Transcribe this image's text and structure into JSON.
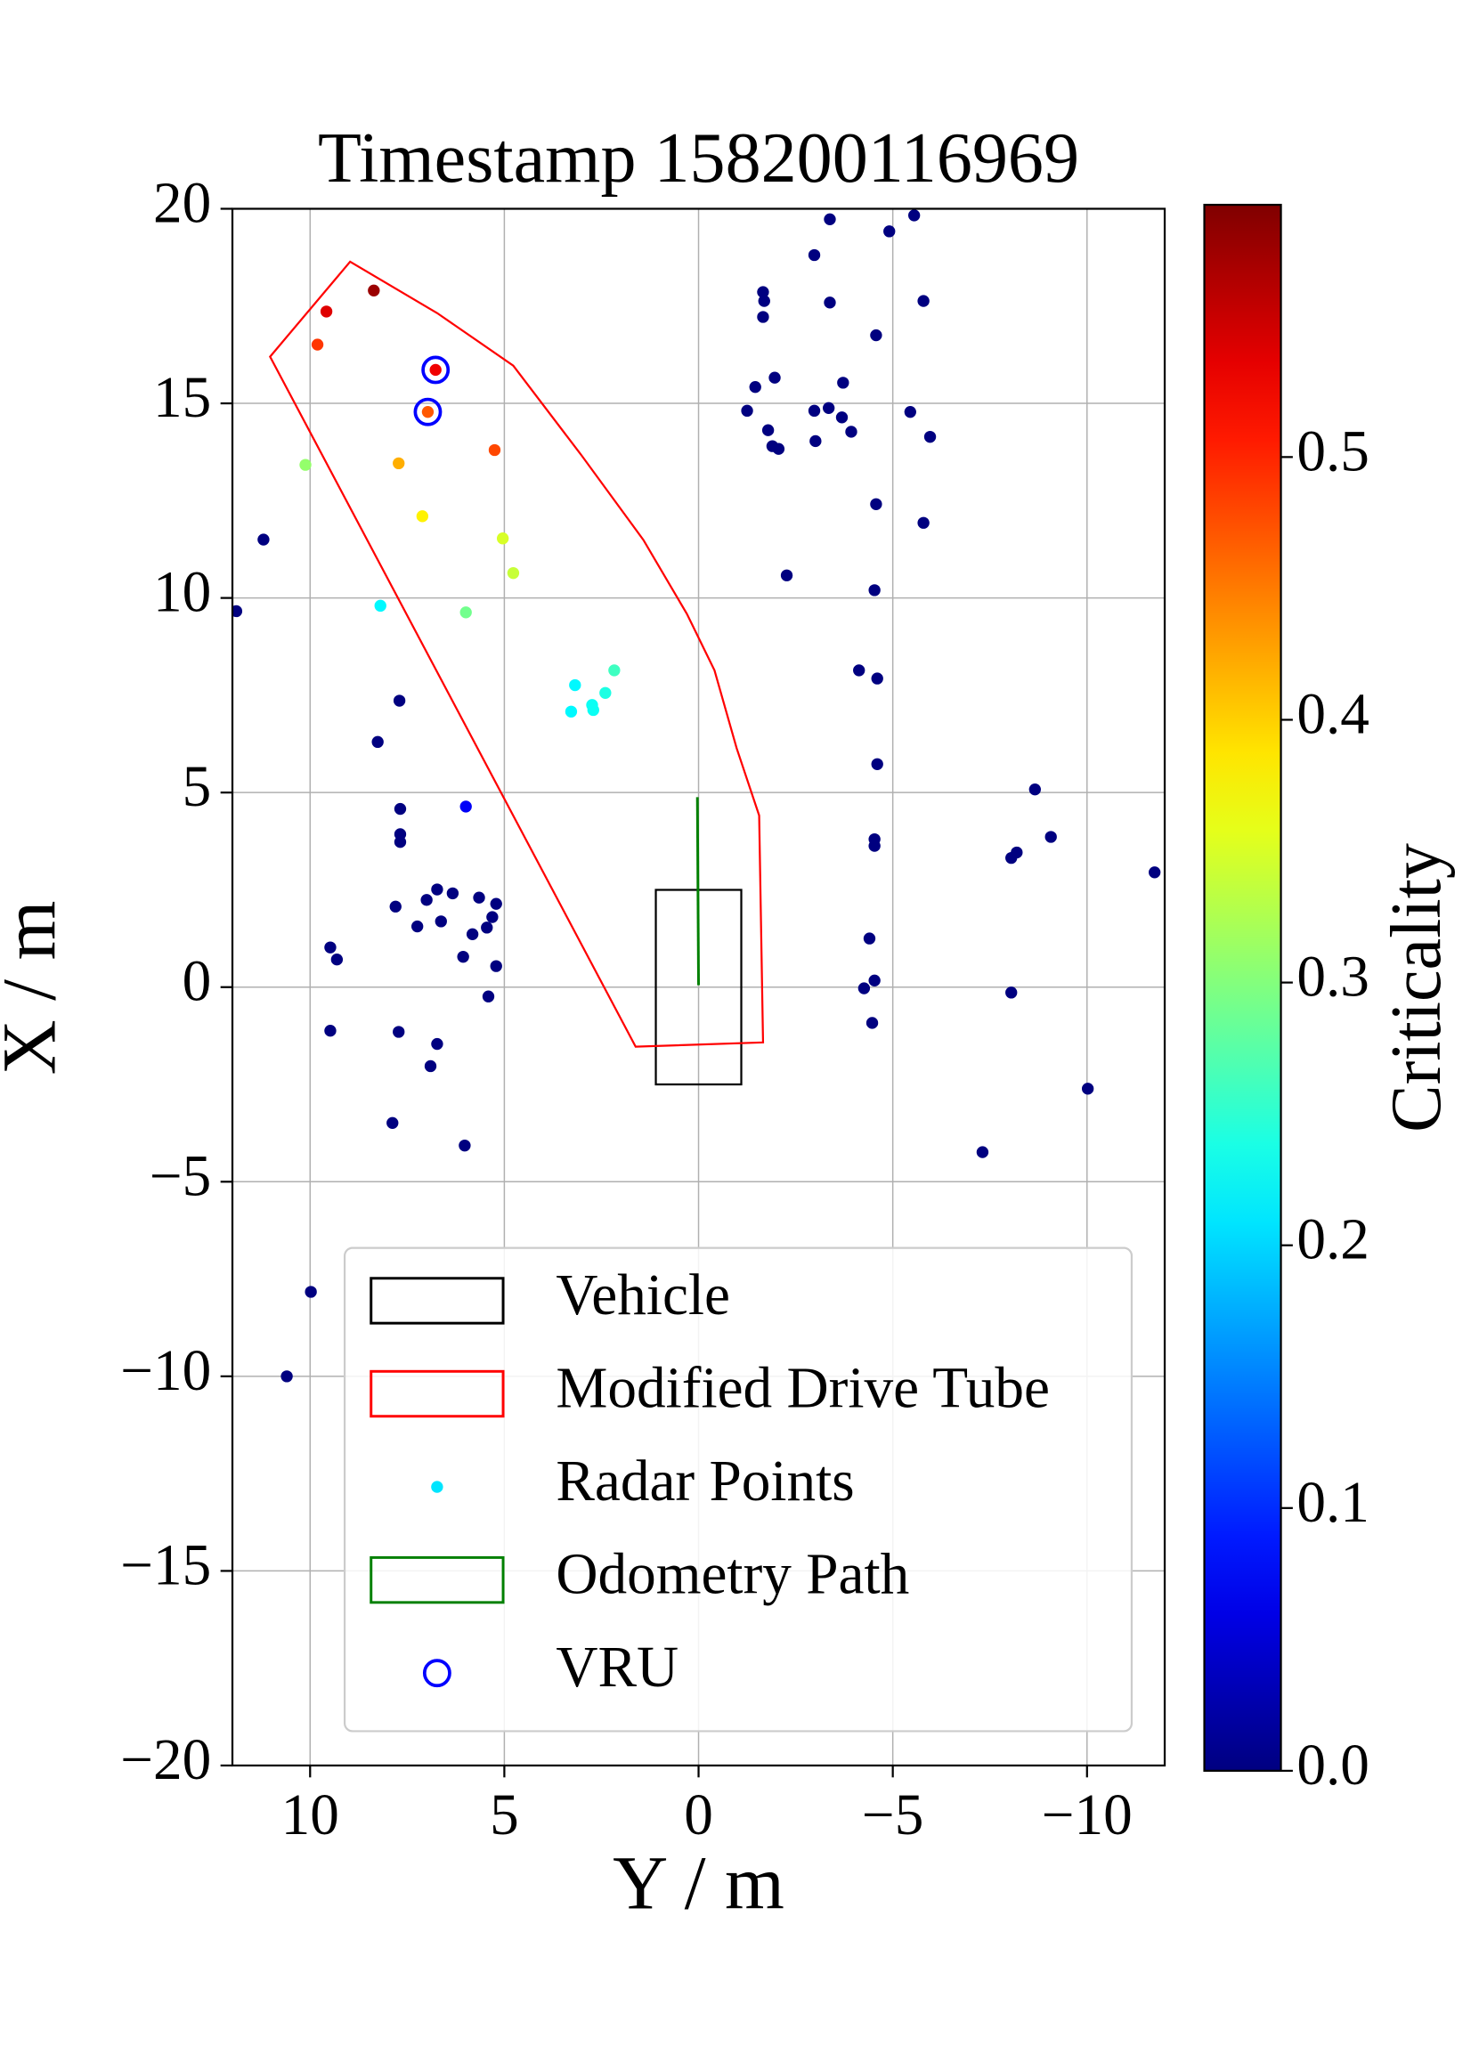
{
  "chart_data": {
    "type": "scatter",
    "title": "Timestamp 158200116969",
    "xlabel": "Y / m",
    "ylabel": "X / m",
    "xlim": [
      12,
      -12
    ],
    "ylim": [
      -20,
      20
    ],
    "xticks": [
      10,
      5,
      0,
      {
        "value": -5,
        "label": "−5"
      },
      {
        "value": -10,
        "label": "−10"
      }
    ],
    "yticks": [
      {
        "value": -20,
        "label": "−20"
      },
      {
        "value": -15,
        "label": "−15"
      },
      {
        "value": -10,
        "label": "−10"
      },
      {
        "value": -5,
        "label": "−5"
      },
      0,
      5,
      10,
      15,
      20
    ],
    "grid": true,
    "colormap": "jet",
    "clim": [
      0,
      0.596
    ],
    "colorbar": {
      "label": "Criticality",
      "ticks": [
        {
          "value": 0,
          "label": "0.0"
        },
        0.1,
        0.2,
        0.3,
        0.4,
        0.5
      ]
    },
    "legend": "lower center",
    "series": [
      {
        "name": "Vehicle",
        "kind": "polygon",
        "color": "#000000",
        "x": [
          1.1,
          -1.1,
          -1.1,
          1.1
        ],
        "y": [
          2.5,
          2.5,
          -2.5,
          -2.5
        ]
      },
      {
        "name": "Modified Drive Tube",
        "kind": "polygon",
        "color": "#ff0000",
        "x": [
          11.03,
          8.97,
          6.73,
          4.77,
          3.01,
          1.42,
          0.3,
          -0.41,
          -0.98,
          -1.56,
          -1.66,
          1.62
        ],
        "y": [
          16.2,
          18.64,
          17.32,
          15.97,
          13.66,
          11.49,
          9.59,
          8.14,
          6.14,
          4.41,
          -1.42,
          -1.53
        ]
      },
      {
        "name": "Radar Points",
        "kind": "points",
        "x": [
          11.9,
          11.2,
          8.26,
          7.7,
          7.68,
          7.68,
          7.68,
          7.8,
          7.24,
          7.0,
          6.73,
          6.33,
          6.63,
          5.82,
          5.65,
          5.21,
          5.31,
          5.45,
          6.06,
          5.21,
          5.41,
          9.48,
          9.31,
          9.48,
          7.72,
          6.73,
          6.9,
          7.88,
          6.02,
          9.98,
          10.6,
          -3.38,
          -5.55,
          -4.91,
          -2.98,
          -1.66,
          -1.69,
          -1.66,
          -3.38,
          -5.79,
          -4.57,
          -1.96,
          -1.46,
          -3.72,
          -1.25,
          -2.98,
          -3.35,
          -3.69,
          -5.45,
          -1.79,
          -3.93,
          -3.01,
          -5.96,
          -1.9,
          -2.06,
          -4.57,
          -5.79,
          -2.27,
          -4.53,
          -4.13,
          -4.6,
          -4.6,
          -8.66,
          -9.07,
          -8.19,
          -8.05,
          -11.74,
          -4.53,
          -4.53,
          -4.4,
          -4.53,
          -4.26,
          -4.47,
          -8.05,
          -10.02,
          -7.31,
          5.99,
          8.36,
          9.58,
          9.81,
          6.77,
          6.97,
          5.25,
          7.72,
          10.12,
          7.11,
          5.04,
          4.77,
          8.19,
          5.99,
          2.17,
          3.18,
          2.4,
          2.74,
          2.71,
          3.28
        ],
        "y": [
          9.66,
          11.5,
          6.3,
          7.36,
          4.58,
          3.93,
          3.73,
          2.07,
          1.56,
          2.24,
          2.51,
          2.41,
          1.69,
          1.36,
          2.3,
          2.14,
          1.8,
          1.53,
          0.78,
          0.54,
          -0.24,
          1.02,
          0.71,
          -1.12,
          -1.15,
          -1.46,
          -2.03,
          -3.49,
          -4.07,
          -7.83,
          -10.0,
          19.73,
          19.83,
          19.42,
          18.81,
          17.86,
          17.63,
          17.22,
          17.59,
          17.63,
          16.75,
          15.66,
          15.42,
          15.53,
          14.81,
          14.81,
          14.88,
          14.64,
          14.78,
          14.31,
          14.27,
          14.03,
          14.14,
          13.9,
          13.83,
          12.41,
          11.93,
          10.58,
          10.2,
          8.14,
          7.93,
          5.73,
          5.08,
          3.86,
          3.46,
          3.32,
          2.95,
          3.8,
          3.63,
          1.25,
          0.17,
          -0.03,
          -0.92,
          -0.14,
          -2.61,
          -4.24,
          4.64,
          17.9,
          17.36,
          16.51,
          15.86,
          14.78,
          13.8,
          13.46,
          13.42,
          12.1,
          11.53,
          10.64,
          9.8,
          9.63,
          8.14,
          7.76,
          7.56,
          7.25,
          7.12,
          7.08
        ],
        "values": [
          0,
          0,
          0,
          0,
          0,
          0,
          0,
          0,
          0,
          0,
          0,
          0,
          0,
          0,
          0,
          0,
          0,
          0,
          0,
          0,
          0,
          0,
          0,
          0,
          0,
          0,
          0,
          0,
          0,
          0,
          0,
          0,
          0,
          0,
          0,
          0,
          0,
          0,
          0,
          0,
          0,
          0,
          0,
          0,
          0,
          0,
          0,
          0,
          0,
          0,
          0,
          0,
          0,
          0,
          0,
          0,
          0,
          0,
          0,
          0,
          0,
          0,
          0,
          0,
          0,
          0,
          0,
          0,
          0,
          0,
          0,
          0,
          0,
          0,
          0,
          0,
          0.07,
          0.58,
          0.54,
          0.49,
          0.53,
          0.47,
          0.48,
          0.42,
          0.31,
          0.38,
          0.35,
          0.34,
          0.22,
          0.29,
          0.26,
          0.22,
          0.24,
          0.23,
          0.23,
          0.22
        ]
      },
      {
        "name": "Odometry Path",
        "kind": "line",
        "color": "#008000",
        "x": [
          0.03,
          0
        ],
        "y": [
          4.88,
          0.05
        ]
      },
      {
        "name": "VRU",
        "kind": "circles",
        "color": "#0000ff",
        "x": [
          6.77,
          6.97
        ],
        "y": [
          15.86,
          14.78
        ]
      }
    ]
  }
}
